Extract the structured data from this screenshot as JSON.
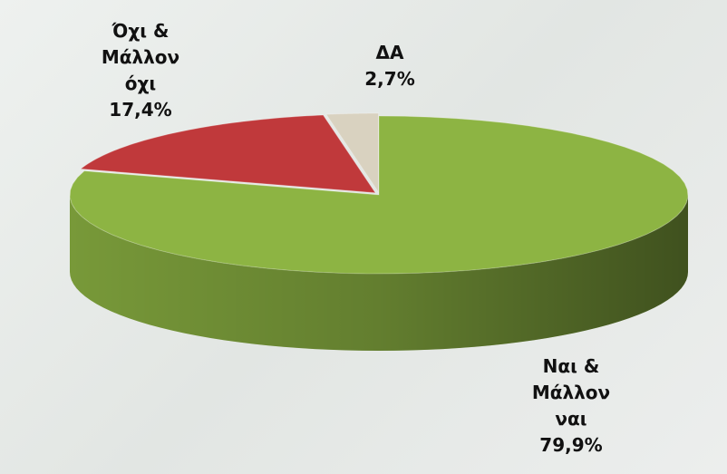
{
  "chart_data": {
    "type": "pie",
    "categories": [
      "Ναι & Μάλλον ναι",
      "Όχι & Μάλλον όχι",
      "ΔΑ"
    ],
    "values": [
      79.9,
      17.4,
      2.7
    ],
    "value_labels": [
      "79,9%",
      "17,4%",
      "2,7%"
    ],
    "colors": [
      "#8db443",
      "#c0393b",
      "#d9d2c0"
    ]
  }
}
